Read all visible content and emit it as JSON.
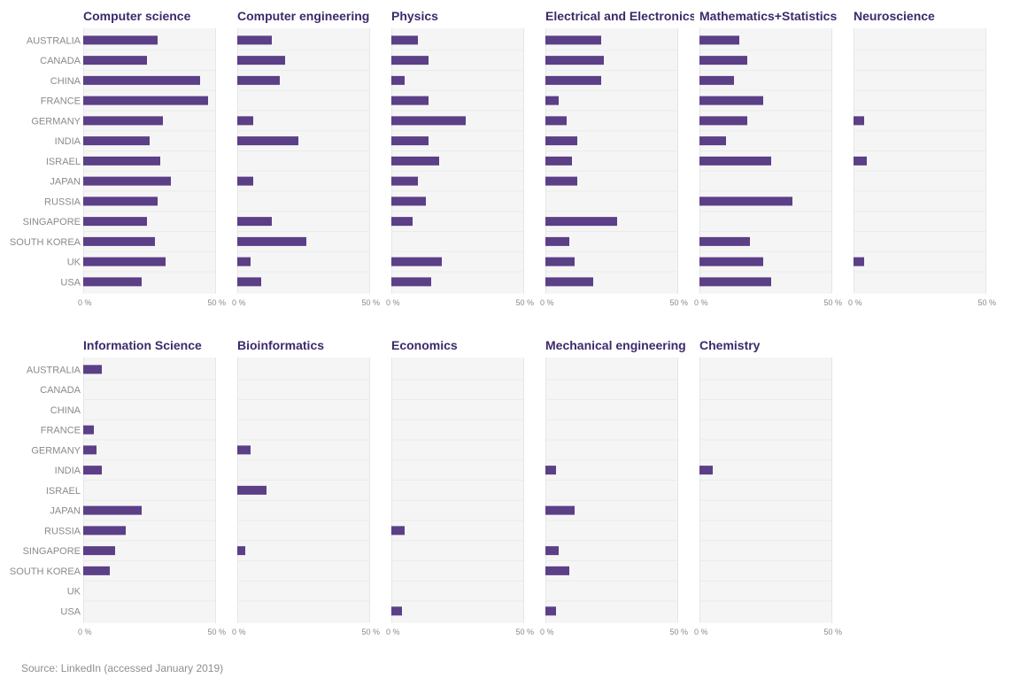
{
  "source": "Source: LinkedIn (accessed January 2019)",
  "chart_data": {
    "type": "bar",
    "orientation": "horizontal",
    "bar_color": "#5b3f87",
    "panel_background": "#f5f5f5",
    "title_color": "#3d2a6b",
    "categories": [
      "AUSTRALIA",
      "CANADA",
      "CHINA",
      "FRANCE",
      "GERMANY",
      "INDIA",
      "ISRAEL",
      "JAPAN",
      "RUSSIA",
      "SINGAPORE",
      "SOUTH KOREA",
      "UK",
      "USA"
    ],
    "xlim": [
      0,
      50
    ],
    "x_ticks": [
      "0 %",
      "50 %"
    ],
    "grid": true,
    "panels": [
      {
        "title": "Computer science",
        "values": [
          28,
          24,
          44,
          47,
          30,
          25,
          29,
          33,
          28,
          24,
          27,
          31,
          22
        ]
      },
      {
        "title": "Computer engineering",
        "values": [
          13,
          18,
          16,
          0,
          6,
          23,
          0,
          6,
          0,
          13,
          26,
          5,
          9
        ]
      },
      {
        "title": "Physics",
        "values": [
          10,
          14,
          5,
          14,
          28,
          14,
          18,
          10,
          13,
          8,
          0,
          19,
          15
        ]
      },
      {
        "title": "Electrical and Electronics",
        "values": [
          21,
          22,
          21,
          5,
          8,
          12,
          10,
          12,
          0,
          27,
          9,
          11,
          18
        ]
      },
      {
        "title": "Mathematics+Statistics",
        "values": [
          15,
          18,
          13,
          24,
          18,
          10,
          27,
          0,
          35,
          0,
          19,
          24,
          27
        ]
      },
      {
        "title": "Neuroscience",
        "values": [
          0,
          0,
          0,
          0,
          4,
          0,
          5,
          0,
          0,
          0,
          0,
          4,
          0
        ]
      },
      {
        "title": "Information Science",
        "values": [
          7,
          0,
          0,
          4,
          5,
          7,
          0,
          22,
          16,
          12,
          10,
          0,
          0
        ]
      },
      {
        "title": "Bioinformatics",
        "values": [
          0,
          0,
          0,
          0,
          5,
          0,
          11,
          0,
          0,
          3,
          0,
          0,
          0
        ]
      },
      {
        "title": "Economics",
        "values": [
          0,
          0,
          0,
          0,
          0,
          0,
          0,
          0,
          5,
          0,
          0,
          0,
          4
        ]
      },
      {
        "title": "Mechanical engineering",
        "values": [
          0,
          0,
          0,
          0,
          0,
          4,
          0,
          11,
          0,
          5,
          9,
          0,
          4
        ]
      },
      {
        "title": "Chemistry",
        "values": [
          0,
          0,
          0,
          0,
          0,
          5,
          0,
          0,
          0,
          0,
          0,
          0,
          0
        ]
      }
    ]
  }
}
